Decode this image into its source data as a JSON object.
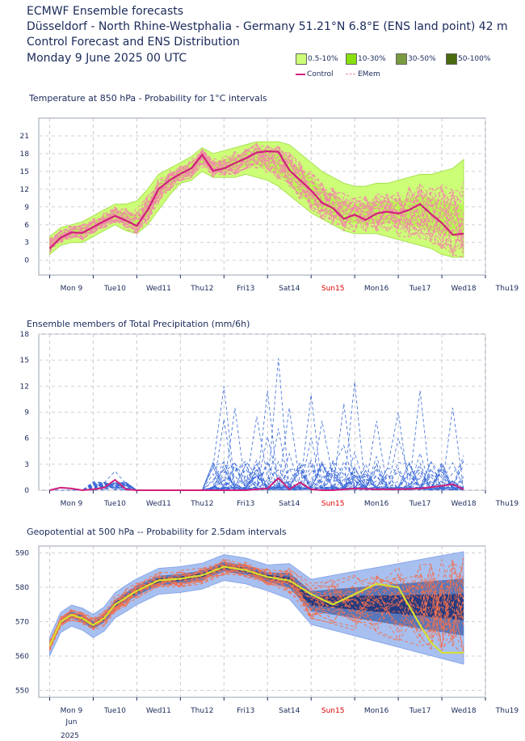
{
  "header": {
    "line1": "ECMWF Ensemble forecasts",
    "line2": "Düsseldorf - North Rhine-Westphalia - Germany 51.21°N 6.8°E (ENS land point) 42 m",
    "line3": "Control Forecast and ENS Distribution",
    "line4": "Monday  9 June 2025 00 UTC"
  },
  "legend": {
    "swatches": [
      {
        "label": "0.5-10%",
        "color": "#ccff77"
      },
      {
        "label": "10-30%",
        "color": "#88e010"
      },
      {
        "label": "30-50%",
        "color": "#7a9a40"
      },
      {
        "label": "50-100%",
        "color": "#4a6a10"
      }
    ],
    "control_label": "Control",
    "emem_label": "EMem",
    "control_color": "#d0207a",
    "emem_color": "#f08aa8"
  },
  "days": [
    "Mon 9",
    "Tue10",
    "Wed11",
    "Thu12",
    "Fri13",
    "Sat14",
    "Sun15",
    "Mon16",
    "Tue17",
    "Wed18",
    "Thu19"
  ],
  "sunday_color": "#e00000",
  "bottom_labels": {
    "month": "Jun",
    "year": "2025"
  },
  "chart_data": [
    {
      "type": "area",
      "title": "Temperature at 850 hPa - Probability for 1°C intervals",
      "unit": "°C",
      "ylim": [
        -2.5,
        24
      ],
      "yticks": [
        0,
        3,
        6,
        9,
        12,
        15,
        18,
        21
      ],
      "x_unit": "days since Mon 9 June 2025 00 UTC",
      "xlim": [
        -0.25,
        10.0
      ],
      "control": {
        "name": "Control",
        "x": [
          0,
          0.25,
          0.5,
          0.75,
          1.0,
          1.25,
          1.5,
          1.75,
          2.0,
          2.25,
          2.5,
          2.75,
          3.0,
          3.25,
          3.5,
          3.75,
          4.0,
          4.25,
          4.5,
          4.75,
          5.0,
          5.25,
          5.5,
          5.75,
          6.0,
          6.25,
          6.5,
          6.75,
          7.0,
          7.25,
          7.5,
          7.75,
          8.0,
          8.25,
          8.5,
          8.75,
          9.0,
          9.25,
          9.5
        ],
        "values": [
          2.0,
          3.8,
          4.7,
          4.6,
          5.6,
          6.6,
          7.5,
          6.7,
          5.8,
          8.5,
          12.0,
          13.5,
          14.6,
          15.5,
          17.8,
          15.1,
          15.5,
          16.4,
          17.2,
          18.2,
          18.4,
          18.3,
          15.2,
          13.5,
          11.8,
          9.7,
          8.8,
          7.0,
          7.7,
          6.8,
          7.9,
          8.2,
          7.9,
          8.5,
          9.5,
          7.8,
          6.3,
          4.3,
          4.5
        ]
      },
      "band_outer_lo": [
        1.0,
        2.5,
        3.0,
        3.0,
        4.0,
        5.0,
        6.0,
        5.0,
        4.5,
        6.0,
        8.5,
        11.0,
        13.0,
        13.5,
        15.0,
        14.0,
        14.0,
        14.0,
        14.5,
        14.0,
        13.5,
        12.5,
        11.0,
        9.5,
        8.0,
        7.0,
        6.0,
        5.0,
        4.5,
        4.5,
        4.5,
        4.0,
        3.5,
        3.0,
        2.5,
        2.0,
        1.0,
        0.5,
        0.5
      ],
      "band_outer_hi": [
        4.0,
        5.5,
        6.0,
        6.5,
        7.5,
        8.5,
        9.5,
        9.5,
        10.0,
        12.0,
        14.5,
        15.5,
        16.5,
        17.5,
        19.0,
        18.0,
        18.5,
        19.0,
        19.5,
        20.0,
        20.0,
        20.0,
        19.5,
        18.0,
        16.5,
        15.0,
        14.0,
        13.0,
        12.5,
        12.5,
        13.0,
        13.0,
        13.5,
        14.0,
        14.5,
        14.5,
        15.0,
        15.5,
        17.0
      ],
      "band_inner_lo": [
        1.8,
        3.2,
        4.0,
        4.0,
        5.0,
        6.0,
        6.8,
        6.0,
        5.4,
        7.5,
        10.5,
        12.5,
        13.8,
        14.5,
        16.5,
        14.8,
        15.0,
        15.3,
        15.8,
        16.0,
        15.5,
        14.5,
        13.0,
        11.0,
        9.5,
        8.3,
        7.3,
        6.3,
        6.3,
        6.0,
        6.2,
        6.3,
        6.0,
        5.8,
        5.5,
        5.0,
        4.5,
        4.0,
        4.0
      ],
      "band_inner_hi": [
        3.2,
        4.8,
        5.4,
        5.6,
        6.5,
        7.5,
        8.5,
        8.0,
        7.8,
        10.0,
        13.0,
        14.5,
        15.5,
        16.5,
        18.0,
        16.5,
        17.0,
        17.5,
        18.3,
        18.8,
        18.8,
        18.5,
        17.0,
        15.5,
        14.0,
        12.0,
        11.0,
        10.0,
        9.5,
        9.5,
        10.0,
        10.0,
        10.0,
        10.5,
        11.0,
        10.5,
        10.0,
        9.5,
        9.5
      ]
    },
    {
      "type": "line",
      "title": "Ensemble members of Total Precipitation (mm/6h)",
      "unit": "mm/6h",
      "ylim": [
        0,
        18
      ],
      "yticks": [
        0,
        3,
        6,
        9,
        12,
        15,
        18
      ],
      "x_unit": "days since Mon 9 June 2025 00 UTC",
      "xlim": [
        -0.25,
        10.0
      ],
      "control": {
        "name": "Control",
        "x": [
          0,
          0.25,
          0.5,
          0.75,
          1.0,
          1.25,
          1.5,
          1.75,
          2.0,
          2.5,
          3.0,
          3.5,
          4.0,
          4.5,
          5.0,
          5.25,
          5.5,
          5.75,
          6.0,
          6.25,
          6.5,
          7.0,
          7.5,
          8.0,
          8.5,
          9.0,
          9.25,
          9.5
        ],
        "values": [
          0,
          0.3,
          0.2,
          0,
          0.1,
          0.3,
          1.2,
          0.1,
          0,
          0,
          0,
          0,
          0,
          0,
          0.2,
          1.4,
          0.1,
          0.9,
          0.1,
          0,
          0,
          0.2,
          0.1,
          0.1,
          0.2,
          0.5,
          0.7,
          0.1
        ]
      },
      "member_peaks": [
        {
          "x": 1.5,
          "value": 2.2
        },
        {
          "x": 4.0,
          "value": 12.0
        },
        {
          "x": 4.25,
          "value": 9.5
        },
        {
          "x": 4.75,
          "value": 8.5
        },
        {
          "x": 5.0,
          "value": 11.5
        },
        {
          "x": 5.25,
          "value": 15.2
        },
        {
          "x": 5.5,
          "value": 9.5
        },
        {
          "x": 6.0,
          "value": 11.0
        },
        {
          "x": 6.25,
          "value": 8.0
        },
        {
          "x": 6.75,
          "value": 10.0
        },
        {
          "x": 7.0,
          "value": 12.5
        },
        {
          "x": 7.5,
          "value": 8.0
        },
        {
          "x": 8.0,
          "value": 9.0
        },
        {
          "x": 8.5,
          "value": 11.5
        },
        {
          "x": 9.25,
          "value": 9.5
        },
        {
          "x": 9.5,
          "value": 4.0
        }
      ]
    },
    {
      "type": "area",
      "title": "Geopotential at 500 hPa -- Probability for 2.5dam intervals",
      "unit": "dam",
      "ylim": [
        548,
        592
      ],
      "yticks": [
        550,
        560,
        570,
        580,
        590
      ],
      "x_unit": "days since Mon 9 June 2025 00 UTC",
      "xlim": [
        -0.25,
        10.0
      ],
      "control": {
        "name": "Control",
        "x": [
          0,
          0.25,
          0.5,
          0.75,
          1.0,
          1.25,
          1.5,
          1.75,
          2.0,
          2.5,
          3.0,
          3.5,
          4.0,
          4.5,
          5.0,
          5.5,
          6.0,
          6.5,
          7.0,
          7.5,
          8.0,
          8.5,
          8.75,
          9.0,
          9.25,
          9.5
        ],
        "values": [
          563,
          570,
          572,
          571,
          569,
          571,
          575,
          577,
          579,
          582,
          582.5,
          583.5,
          586,
          585,
          583,
          582,
          578,
          575,
          578,
          581,
          580,
          569,
          564,
          561,
          561,
          561
        ]
      },
      "colors": {
        "outer": "#a8c0f0",
        "mid": "#4a6ab0",
        "inner": "#1a2a70",
        "control": "#d8e030",
        "members": "#f07050"
      }
    }
  ]
}
